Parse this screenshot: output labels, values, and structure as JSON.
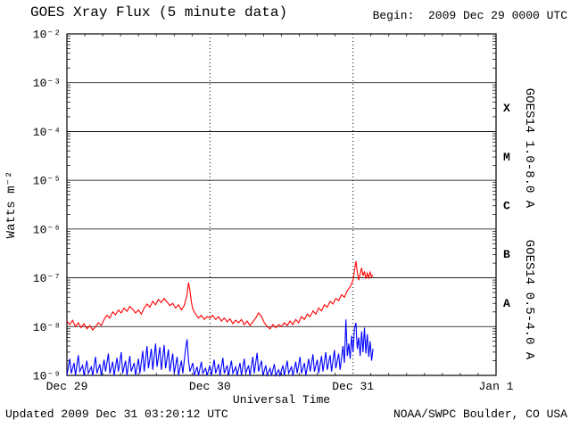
{
  "header": {
    "title": "GOES Xray Flux (5 minute data)",
    "begin": "Begin:  2009 Dec 29 0000 UTC"
  },
  "footer": {
    "updated": "Updated 2009 Dec 31 03:20:12 UTC",
    "credit": "NOAA/SWPC Boulder, CO USA"
  },
  "chart_data": {
    "type": "line",
    "title": "GOES Xray Flux (5 minute data)",
    "xlabel": "Universal Time",
    "ylabel": "Watts m⁻²",
    "x_tick_labels": [
      "Dec 29",
      "Dec 30",
      "Dec 31",
      "Jan 1"
    ],
    "x_tick_days": [
      0,
      1,
      2,
      3
    ],
    "x_range_days": [
      0,
      3
    ],
    "ylim": [
      1e-09,
      0.01
    ],
    "y_scale": "log",
    "y_tick_exponents": [
      -2,
      -3,
      -4,
      -5,
      -6,
      -7,
      -8,
      -9
    ],
    "y_tick_labels": [
      "10⁻²",
      "10⁻³",
      "10⁻⁴",
      "10⁻⁵",
      "10⁻⁶",
      "10⁻⁷",
      "10⁻⁸",
      "10⁻⁹"
    ],
    "grid": {
      "horizontal": "solid-per-decade",
      "vertical": "dotted-at-day-boundaries"
    },
    "flux_class_labels": [
      {
        "label": "X",
        "log10": -3.5
      },
      {
        "label": "M",
        "log10": -4.5
      },
      {
        "label": "C",
        "log10": -5.5
      },
      {
        "label": "B",
        "log10": -6.5
      },
      {
        "label": "A",
        "log10": -7.5
      }
    ],
    "series": [
      {
        "name": "GOES14 1.0-8.0 A",
        "color": "#ff0000",
        "points": [
          [
            0.0,
            1.3e-08
          ],
          [
            0.02,
            1.1e-08
          ],
          [
            0.04,
            1.35e-08
          ],
          [
            0.06,
            1e-08
          ],
          [
            0.08,
            1.2e-08
          ],
          [
            0.1,
            9.5e-09
          ],
          [
            0.12,
            1.15e-08
          ],
          [
            0.14,
            9e-09
          ],
          [
            0.16,
            1.05e-08
          ],
          [
            0.18,
            8.5e-09
          ],
          [
            0.2,
            1e-08
          ],
          [
            0.22,
            1.2e-08
          ],
          [
            0.24,
            1.05e-08
          ],
          [
            0.26,
            1.4e-08
          ],
          [
            0.28,
            1.7e-08
          ],
          [
            0.3,
            1.5e-08
          ],
          [
            0.32,
            2e-08
          ],
          [
            0.34,
            1.75e-08
          ],
          [
            0.36,
            2.2e-08
          ],
          [
            0.38,
            1.9e-08
          ],
          [
            0.4,
            2.4e-08
          ],
          [
            0.42,
            2.05e-08
          ],
          [
            0.44,
            2.6e-08
          ],
          [
            0.46,
            2.25e-08
          ],
          [
            0.48,
            1.9e-08
          ],
          [
            0.5,
            2.2e-08
          ],
          [
            0.52,
            1.8e-08
          ],
          [
            0.54,
            2.4e-08
          ],
          [
            0.56,
            2.9e-08
          ],
          [
            0.58,
            2.5e-08
          ],
          [
            0.6,
            3.3e-08
          ],
          [
            0.62,
            2.8e-08
          ],
          [
            0.64,
            3.6e-08
          ],
          [
            0.66,
            3.1e-08
          ],
          [
            0.68,
            3.8e-08
          ],
          [
            0.7,
            3.2e-08
          ],
          [
            0.72,
            2.7e-08
          ],
          [
            0.74,
            3e-08
          ],
          [
            0.76,
            2.4e-08
          ],
          [
            0.78,
            2.8e-08
          ],
          [
            0.8,
            2.2e-08
          ],
          [
            0.82,
            2.7e-08
          ],
          [
            0.84,
            4.5e-08
          ],
          [
            0.85,
            8e-08
          ],
          [
            0.86,
            5.5e-08
          ],
          [
            0.87,
            3.2e-08
          ],
          [
            0.88,
            2.3e-08
          ],
          [
            0.9,
            1.8e-08
          ],
          [
            0.92,
            1.5e-08
          ],
          [
            0.94,
            1.7e-08
          ],
          [
            0.96,
            1.4e-08
          ],
          [
            0.98,
            1.6e-08
          ],
          [
            1.0,
            1.5e-08
          ],
          [
            1.02,
            1.7e-08
          ],
          [
            1.04,
            1.4e-08
          ],
          [
            1.06,
            1.6e-08
          ],
          [
            1.08,
            1.3e-08
          ],
          [
            1.1,
            1.5e-08
          ],
          [
            1.12,
            1.25e-08
          ],
          [
            1.14,
            1.45e-08
          ],
          [
            1.16,
            1.15e-08
          ],
          [
            1.18,
            1.35e-08
          ],
          [
            1.2,
            1.2e-08
          ],
          [
            1.22,
            1.4e-08
          ],
          [
            1.24,
            1.1e-08
          ],
          [
            1.26,
            1.3e-08
          ],
          [
            1.28,
            1.05e-08
          ],
          [
            1.3,
            1.25e-08
          ],
          [
            1.32,
            1.5e-08
          ],
          [
            1.34,
            1.9e-08
          ],
          [
            1.36,
            1.6e-08
          ],
          [
            1.38,
            1.2e-08
          ],
          [
            1.4,
            1e-08
          ],
          [
            1.42,
            9e-09
          ],
          [
            1.44,
            1.1e-08
          ],
          [
            1.46,
            9.5e-09
          ],
          [
            1.48,
            1.1e-08
          ],
          [
            1.5,
            1e-08
          ],
          [
            1.52,
            1.2e-08
          ],
          [
            1.54,
            1.05e-08
          ],
          [
            1.56,
            1.3e-08
          ],
          [
            1.58,
            1.1e-08
          ],
          [
            1.6,
            1.4e-08
          ],
          [
            1.62,
            1.2e-08
          ],
          [
            1.64,
            1.6e-08
          ],
          [
            1.66,
            1.4e-08
          ],
          [
            1.68,
            1.8e-08
          ],
          [
            1.7,
            1.6e-08
          ],
          [
            1.72,
            2.1e-08
          ],
          [
            1.74,
            1.8e-08
          ],
          [
            1.76,
            2.4e-08
          ],
          [
            1.78,
            2.1e-08
          ],
          [
            1.8,
            2.8e-08
          ],
          [
            1.82,
            2.5e-08
          ],
          [
            1.84,
            3.3e-08
          ],
          [
            1.86,
            2.9e-08
          ],
          [
            1.88,
            3.8e-08
          ],
          [
            1.9,
            3.4e-08
          ],
          [
            1.92,
            4.5e-08
          ],
          [
            1.94,
            4e-08
          ],
          [
            1.96,
            5.5e-08
          ],
          [
            1.98,
            6.5e-08
          ],
          [
            2.0,
            9e-08
          ],
          [
            2.01,
            1.4e-07
          ],
          [
            2.02,
            2.2e-07
          ],
          [
            2.03,
            1.3e-07
          ],
          [
            2.04,
            9e-08
          ],
          [
            2.05,
            1.2e-07
          ],
          [
            2.06,
            1.6e-07
          ],
          [
            2.07,
            1.1e-07
          ],
          [
            2.08,
            1.35e-07
          ],
          [
            2.09,
            9.5e-08
          ],
          [
            2.1,
            1.25e-07
          ],
          [
            2.11,
            1e-07
          ],
          [
            2.12,
            1.3e-07
          ],
          [
            2.13,
            1.05e-07
          ],
          [
            2.14,
            1.15e-07
          ]
        ]
      },
      {
        "name": "GOES14 0.5-4.0 A",
        "color": "#0000ff",
        "points": [
          [
            0.0,
            1e-09
          ],
          [
            0.02,
            2.2e-09
          ],
          [
            0.03,
            1.1e-09
          ],
          [
            0.05,
            1.8e-09
          ],
          [
            0.06,
            1e-09
          ],
          [
            0.08,
            2.6e-09
          ],
          [
            0.09,
            1.2e-09
          ],
          [
            0.11,
            1.6e-09
          ],
          [
            0.12,
            1e-09
          ],
          [
            0.14,
            2e-09
          ],
          [
            0.15,
            1.1e-09
          ],
          [
            0.17,
            1.5e-09
          ],
          [
            0.18,
            1e-09
          ],
          [
            0.2,
            2.4e-09
          ],
          [
            0.21,
            1.1e-09
          ],
          [
            0.23,
            1.7e-09
          ],
          [
            0.24,
            1e-09
          ],
          [
            0.26,
            2.1e-09
          ],
          [
            0.27,
            1.2e-09
          ],
          [
            0.29,
            2.8e-09
          ],
          [
            0.3,
            1.1e-09
          ],
          [
            0.32,
            1.9e-09
          ],
          [
            0.33,
            1e-09
          ],
          [
            0.35,
            2.3e-09
          ],
          [
            0.36,
            1.2e-09
          ],
          [
            0.38,
            3e-09
          ],
          [
            0.39,
            1.1e-09
          ],
          [
            0.41,
            2e-09
          ],
          [
            0.42,
            1e-09
          ],
          [
            0.44,
            2.5e-09
          ],
          [
            0.45,
            1.2e-09
          ],
          [
            0.47,
            1.8e-09
          ],
          [
            0.48,
            1e-09
          ],
          [
            0.5,
            2.2e-09
          ],
          [
            0.51,
            1.1e-09
          ],
          [
            0.53,
            3.2e-09
          ],
          [
            0.54,
            1.2e-09
          ],
          [
            0.56,
            4e-09
          ],
          [
            0.57,
            1.4e-09
          ],
          [
            0.59,
            3.5e-09
          ],
          [
            0.6,
            1.3e-09
          ],
          [
            0.62,
            4.5e-09
          ],
          [
            0.63,
            1.5e-09
          ],
          [
            0.65,
            3.8e-09
          ],
          [
            0.66,
            1.3e-09
          ],
          [
            0.68,
            4.2e-09
          ],
          [
            0.69,
            1.4e-09
          ],
          [
            0.71,
            3.4e-09
          ],
          [
            0.72,
            1.2e-09
          ],
          [
            0.74,
            2.8e-09
          ],
          [
            0.75,
            1.1e-09
          ],
          [
            0.77,
            2.4e-09
          ],
          [
            0.78,
            1e-09
          ],
          [
            0.8,
            2e-09
          ],
          [
            0.81,
            1.1e-09
          ],
          [
            0.83,
            3.6e-09
          ],
          [
            0.84,
            5.5e-09
          ],
          [
            0.85,
            2e-09
          ],
          [
            0.86,
            1.2e-09
          ],
          [
            0.88,
            1.8e-09
          ],
          [
            0.89,
            1e-09
          ],
          [
            0.91,
            1.5e-09
          ],
          [
            0.92,
            1e-09
          ],
          [
            0.94,
            1.9e-09
          ],
          [
            0.95,
            1.1e-09
          ],
          [
            0.97,
            1.4e-09
          ],
          [
            0.98,
            1e-09
          ],
          [
            1.0,
            1.6e-09
          ],
          [
            1.01,
            1e-09
          ],
          [
            1.03,
            2.1e-09
          ],
          [
            1.04,
            1.1e-09
          ],
          [
            1.06,
            1.7e-09
          ],
          [
            1.07,
            1e-09
          ],
          [
            1.09,
            2.3e-09
          ],
          [
            1.1,
            1.1e-09
          ],
          [
            1.12,
            1.6e-09
          ],
          [
            1.13,
            1e-09
          ],
          [
            1.15,
            2e-09
          ],
          [
            1.16,
            1.1e-09
          ],
          [
            1.18,
            1.5e-09
          ],
          [
            1.19,
            1e-09
          ],
          [
            1.21,
            1.8e-09
          ],
          [
            1.22,
            1e-09
          ],
          [
            1.24,
            2.2e-09
          ],
          [
            1.25,
            1.1e-09
          ],
          [
            1.27,
            1.6e-09
          ],
          [
            1.28,
            1e-09
          ],
          [
            1.3,
            2.4e-09
          ],
          [
            1.31,
            1.1e-09
          ],
          [
            1.33,
            2.9e-09
          ],
          [
            1.34,
            1.2e-09
          ],
          [
            1.36,
            2e-09
          ],
          [
            1.37,
            1e-09
          ],
          [
            1.39,
            1.6e-09
          ],
          [
            1.4,
            1e-09
          ],
          [
            1.42,
            1.4e-09
          ],
          [
            1.43,
            1e-09
          ],
          [
            1.45,
            1.7e-09
          ],
          [
            1.46,
            1e-09
          ],
          [
            1.48,
            1.3e-09
          ],
          [
            1.49,
            1e-09
          ],
          [
            1.51,
            1.6e-09
          ],
          [
            1.52,
            1e-09
          ],
          [
            1.54,
            2e-09
          ],
          [
            1.55,
            1.1e-09
          ],
          [
            1.57,
            1.5e-09
          ],
          [
            1.58,
            1e-09
          ],
          [
            1.6,
            1.9e-09
          ],
          [
            1.61,
            1.1e-09
          ],
          [
            1.63,
            2.4e-09
          ],
          [
            1.64,
            1.1e-09
          ],
          [
            1.66,
            1.8e-09
          ],
          [
            1.67,
            1e-09
          ],
          [
            1.69,
            2.2e-09
          ],
          [
            1.7,
            1.2e-09
          ],
          [
            1.72,
            2.7e-09
          ],
          [
            1.73,
            1.2e-09
          ],
          [
            1.75,
            2.1e-09
          ],
          [
            1.76,
            1.1e-09
          ],
          [
            1.78,
            2.5e-09
          ],
          [
            1.79,
            1.2e-09
          ],
          [
            1.81,
            3e-09
          ],
          [
            1.82,
            1.3e-09
          ],
          [
            1.84,
            2.6e-09
          ],
          [
            1.85,
            1.2e-09
          ],
          [
            1.87,
            3.3e-09
          ],
          [
            1.88,
            1.4e-09
          ],
          [
            1.9,
            2.8e-09
          ],
          [
            1.91,
            1.3e-09
          ],
          [
            1.93,
            4e-09
          ],
          [
            1.94,
            1.8e-09
          ],
          [
            1.95,
            1.4e-08
          ],
          [
            1.96,
            2.5e-09
          ],
          [
            1.97,
            4.5e-09
          ],
          [
            1.98,
            2.2e-09
          ],
          [
            1.99,
            6.5e-09
          ],
          [
            2.0,
            3e-09
          ],
          [
            2.01,
            9e-09
          ],
          [
            2.02,
            1.2e-08
          ],
          [
            2.03,
            3.5e-09
          ],
          [
            2.04,
            6e-09
          ],
          [
            2.05,
            2.5e-09
          ],
          [
            2.06,
            8e-09
          ],
          [
            2.07,
            3e-09
          ],
          [
            2.08,
            9.5e-09
          ],
          [
            2.09,
            2.8e-09
          ],
          [
            2.1,
            7e-09
          ],
          [
            2.11,
            2.4e-09
          ],
          [
            2.12,
            5e-09
          ],
          [
            2.13,
            2e-09
          ],
          [
            2.14,
            3.5e-09
          ]
        ]
      }
    ]
  }
}
